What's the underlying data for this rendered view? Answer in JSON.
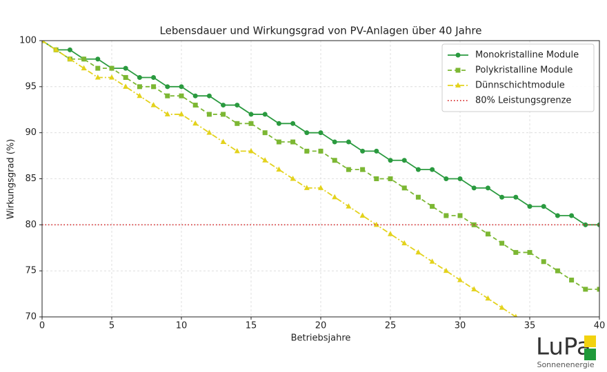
{
  "chart_data": {
    "type": "line",
    "title": "Lebensdauer und Wirkungsgrad von PV-Anlagen über 40 Jahre",
    "xlabel": "Betriebsjahre",
    "ylabel": "Wirkungsgrad (%)",
    "x": [
      0,
      1,
      2,
      3,
      4,
      5,
      6,
      7,
      8,
      9,
      10,
      11,
      12,
      13,
      14,
      15,
      16,
      17,
      18,
      19,
      20,
      21,
      22,
      23,
      24,
      25,
      26,
      27,
      28,
      29,
      30,
      31,
      32,
      33,
      34,
      35,
      36,
      37,
      38,
      39,
      40
    ],
    "series": [
      {
        "name": "Monokristalline Module",
        "color": "#2a9a3f",
        "marker": "circle",
        "linestyle": "solid",
        "values": [
          100,
          99,
          99,
          98,
          98,
          97,
          97,
          96,
          96,
          95,
          95,
          94,
          94,
          93,
          93,
          92,
          92,
          91,
          91,
          90,
          90,
          89,
          89,
          88,
          88,
          87,
          87,
          86,
          86,
          85,
          85,
          84,
          84,
          83,
          83,
          82,
          82,
          81,
          81,
          80,
          80
        ]
      },
      {
        "name": "Polykristalline Module",
        "color": "#7cb733",
        "marker": "square",
        "linestyle": "dashed",
        "values": [
          100,
          99,
          98,
          98,
          97,
          97,
          96,
          95,
          95,
          94,
          94,
          93,
          92,
          92,
          91,
          91,
          90,
          89,
          89,
          88,
          88,
          87,
          86,
          86,
          85,
          85,
          84,
          83,
          82,
          81,
          81,
          80,
          79,
          78,
          77,
          77,
          76,
          75,
          74,
          73,
          73
        ]
      },
      {
        "name": "Dünnschichtmodule",
        "color": "#e3d21c",
        "marker": "triangle",
        "linestyle": "dashdot",
        "values": [
          100,
          99,
          98,
          97,
          96,
          96,
          95,
          94,
          93,
          92,
          92,
          91,
          90,
          89,
          88,
          88,
          87,
          86,
          85,
          84,
          84,
          83,
          82,
          81,
          80,
          79,
          78,
          77,
          76,
          75,
          74,
          73,
          72,
          71,
          70,
          null,
          null,
          null,
          null,
          null,
          null
        ]
      }
    ],
    "hlines": [
      {
        "name": "80% Leistungsgrenze",
        "value": 80,
        "color": "#d62728"
      }
    ],
    "xlim": [
      0,
      40
    ],
    "xticks": [
      0,
      5,
      10,
      15,
      20,
      25,
      30,
      35,
      40
    ],
    "ylim": [
      70,
      100
    ],
    "yticks": [
      70,
      75,
      80,
      85,
      90,
      95,
      100
    ],
    "grid": true,
    "legend": "upper right"
  },
  "logo": {
    "text": "LuPa",
    "subtitle": "Sonnenenergie"
  }
}
